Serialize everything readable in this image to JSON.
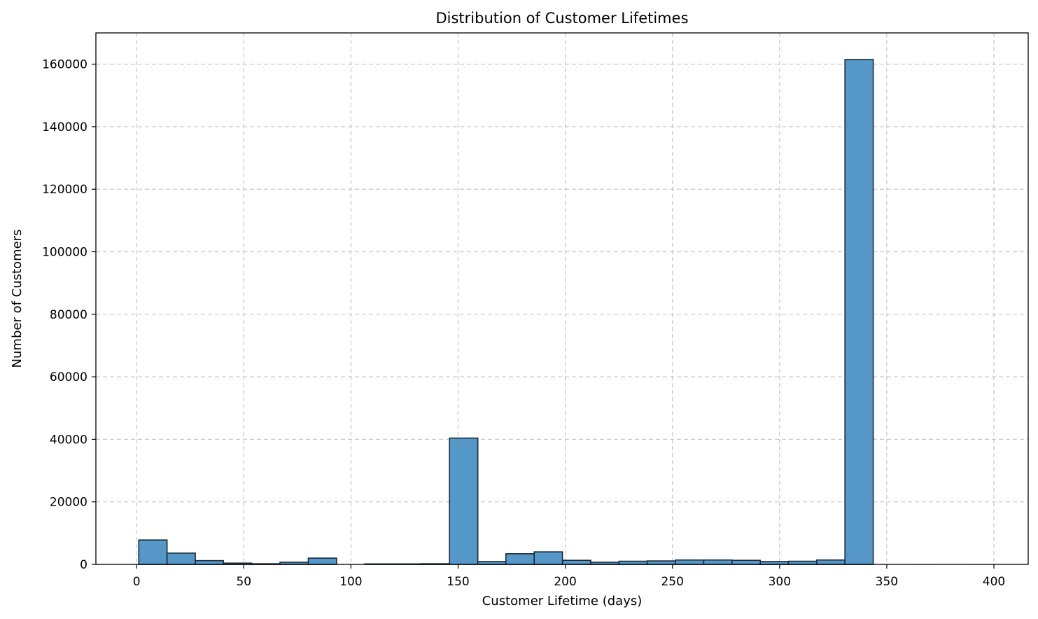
{
  "chart_data": {
    "type": "bar",
    "title": "Distribution of Customer Lifetimes",
    "xlabel": "Customer Lifetime (days)",
    "ylabel": "Number of Customers",
    "xlim": [
      -19,
      416
    ],
    "ylim": [
      0,
      170000
    ],
    "xticks": [
      0,
      50,
      100,
      150,
      200,
      250,
      300,
      350,
      400
    ],
    "yticks": [
      0,
      20000,
      40000,
      60000,
      80000,
      100000,
      120000,
      140000,
      160000
    ],
    "grid": true,
    "bar_color": "#5598c8",
    "bar_edge_color": "#1a2a38",
    "bins": [
      {
        "x0": 1,
        "x1": 14.2,
        "value": 7800
      },
      {
        "x0": 14.2,
        "x1": 27.4,
        "value": 3600
      },
      {
        "x0": 27.4,
        "x1": 40.5,
        "value": 1200
      },
      {
        "x0": 40.5,
        "x1": 53.7,
        "value": 400
      },
      {
        "x0": 53.7,
        "x1": 66.9,
        "value": 200
      },
      {
        "x0": 66.9,
        "x1": 80.1,
        "value": 700
      },
      {
        "x0": 80.1,
        "x1": 93.3,
        "value": 2000
      },
      {
        "x0": 93.3,
        "x1": 106.4,
        "value": 0
      },
      {
        "x0": 106.4,
        "x1": 119.6,
        "value": 150
      },
      {
        "x0": 119.6,
        "x1": 132.8,
        "value": 150
      },
      {
        "x0": 132.8,
        "x1": 146.0,
        "value": 200
      },
      {
        "x0": 146.0,
        "x1": 159.2,
        "value": 40400
      },
      {
        "x0": 159.2,
        "x1": 172.3,
        "value": 900
      },
      {
        "x0": 172.3,
        "x1": 185.5,
        "value": 3400
      },
      {
        "x0": 185.5,
        "x1": 198.7,
        "value": 4000
      },
      {
        "x0": 198.7,
        "x1": 211.9,
        "value": 1300
      },
      {
        "x0": 211.9,
        "x1": 225.1,
        "value": 700
      },
      {
        "x0": 225.1,
        "x1": 238.2,
        "value": 1000
      },
      {
        "x0": 238.2,
        "x1": 251.4,
        "value": 1100
      },
      {
        "x0": 251.4,
        "x1": 264.6,
        "value": 1400
      },
      {
        "x0": 264.6,
        "x1": 277.8,
        "value": 1400
      },
      {
        "x0": 277.8,
        "x1": 291.0,
        "value": 1300
      },
      {
        "x0": 291.0,
        "x1": 304.1,
        "value": 900
      },
      {
        "x0": 304.1,
        "x1": 317.3,
        "value": 1000
      },
      {
        "x0": 317.3,
        "x1": 330.5,
        "value": 1400
      },
      {
        "x0": 330.5,
        "x1": 343.7,
        "value": 161500
      },
      {
        "x0": 343.7,
        "x1": 356.9,
        "value": 0
      },
      {
        "x0": 356.9,
        "x1": 370.0,
        "value": 0
      },
      {
        "x0": 370.0,
        "x1": 383.2,
        "value": 0
      },
      {
        "x0": 383.2,
        "x1": 396.4,
        "value": 0
      },
      {
        "x0": 396.4,
        "x1": 409.6,
        "value": 0
      }
    ]
  }
}
